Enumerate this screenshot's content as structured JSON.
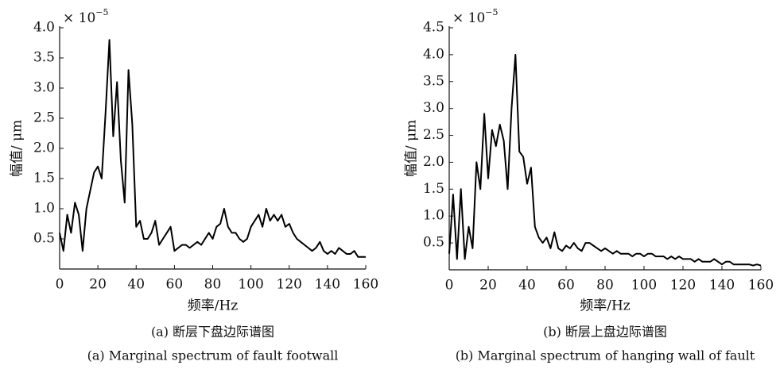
{
  "chart_data": [
    {
      "type": "line",
      "color": "#000000",
      "y_scale_base": "× 10",
      "y_scale_exponent": "−5",
      "y_label": "幅值/ μm",
      "x_label": "频率/Hz",
      "caption": "(a) 断层下盘边际谱图",
      "caption_en": "(a) Marginal spectrum of fault footwall",
      "xlim": [
        0,
        160
      ],
      "xticks": [
        0,
        20,
        40,
        60,
        80,
        100,
        120,
        140,
        160
      ],
      "ylim": [
        0,
        4
      ],
      "yticks": [
        0.5,
        {
          "value": 1,
          "label": "1.0"
        },
        1.5,
        {
          "value": 2,
          "label": "2.0"
        },
        2.5,
        {
          "value": 3,
          "label": "3.0"
        },
        3.5,
        {
          "value": 4,
          "label": "4.0"
        }
      ],
      "x": [
        0,
        2,
        4,
        6,
        8,
        10,
        12,
        14,
        16,
        18,
        20,
        22,
        24,
        26,
        28,
        30,
        32,
        34,
        36,
        38,
        40,
        42,
        44,
        46,
        48,
        50,
        52,
        54,
        56,
        58,
        60,
        62,
        64,
        66,
        68,
        70,
        72,
        74,
        76,
        78,
        80,
        82,
        84,
        86,
        88,
        90,
        92,
        94,
        96,
        98,
        100,
        102,
        104,
        106,
        108,
        110,
        112,
        114,
        116,
        118,
        120,
        122,
        124,
        126,
        128,
        130,
        132,
        134,
        136,
        138,
        140,
        142,
        144,
        146,
        148,
        150,
        152,
        154,
        156,
        158,
        160
      ],
      "values": [
        0.6,
        0.3,
        0.9,
        0.6,
        1.1,
        0.9,
        0.3,
        1.0,
        1.3,
        1.6,
        1.7,
        1.5,
        2.6,
        3.8,
        2.2,
        3.1,
        1.8,
        1.1,
        3.3,
        2.4,
        0.7,
        0.8,
        0.5,
        0.5,
        0.6,
        0.8,
        0.4,
        0.5,
        0.6,
        0.7,
        0.3,
        0.35,
        0.4,
        0.4,
        0.35,
        0.4,
        0.45,
        0.4,
        0.5,
        0.6,
        0.5,
        0.7,
        0.75,
        1.0,
        0.7,
        0.6,
        0.6,
        0.5,
        0.45,
        0.5,
        0.7,
        0.8,
        0.9,
        0.7,
        1.0,
        0.8,
        0.9,
        0.8,
        0.9,
        0.7,
        0.75,
        0.6,
        0.5,
        0.45,
        0.4,
        0.35,
        0.3,
        0.35,
        0.45,
        0.3,
        0.25,
        0.3,
        0.25,
        0.35,
        0.3,
        0.25,
        0.25,
        0.3,
        0.2,
        0.2,
        0.2
      ]
    },
    {
      "type": "line",
      "color": "#000000",
      "y_scale_base": "× 10",
      "y_scale_exponent": "−5",
      "y_label": "幅值/ μm",
      "x_label": "频率/Hz",
      "caption": "(b) 断层上盘边际谱图",
      "caption_en": "(b) Marginal spectrum of hanging wall of fault",
      "xlim": [
        0,
        160
      ],
      "xticks": [
        0,
        20,
        40,
        60,
        80,
        100,
        120,
        140,
        160
      ],
      "ylim": [
        0,
        4.5
      ],
      "yticks": [
        0.5,
        {
          "value": 1,
          "label": "1.0"
        },
        1.5,
        {
          "value": 2,
          "label": "2.0"
        },
        2.5,
        {
          "value": 3,
          "label": "3.0"
        },
        3.5,
        {
          "value": 4,
          "label": "4.0"
        },
        4.5
      ],
      "x": [
        0,
        2,
        4,
        6,
        8,
        10,
        12,
        14,
        16,
        18,
        20,
        22,
        24,
        26,
        28,
        30,
        32,
        34,
        36,
        38,
        40,
        42,
        44,
        46,
        48,
        50,
        52,
        54,
        56,
        58,
        60,
        62,
        64,
        66,
        68,
        70,
        72,
        74,
        76,
        78,
        80,
        82,
        84,
        86,
        88,
        90,
        92,
        94,
        96,
        98,
        100,
        102,
        104,
        106,
        108,
        110,
        112,
        114,
        116,
        118,
        120,
        122,
        124,
        126,
        128,
        130,
        132,
        134,
        136,
        138,
        140,
        142,
        144,
        146,
        148,
        150,
        152,
        154,
        156,
        158,
        160
      ],
      "values": [
        0.3,
        1.4,
        0.2,
        1.5,
        0.2,
        0.8,
        0.4,
        2.0,
        1.5,
        2.9,
        1.7,
        2.6,
        2.3,
        2.7,
        2.4,
        1.5,
        3.0,
        4.0,
        2.2,
        2.1,
        1.6,
        1.9,
        0.8,
        0.6,
        0.5,
        0.6,
        0.4,
        0.7,
        0.4,
        0.35,
        0.45,
        0.4,
        0.5,
        0.4,
        0.35,
        0.5,
        0.5,
        0.45,
        0.4,
        0.35,
        0.4,
        0.35,
        0.3,
        0.35,
        0.3,
        0.3,
        0.3,
        0.25,
        0.3,
        0.3,
        0.25,
        0.3,
        0.3,
        0.25,
        0.25,
        0.25,
        0.2,
        0.25,
        0.2,
        0.25,
        0.2,
        0.2,
        0.2,
        0.15,
        0.2,
        0.15,
        0.15,
        0.15,
        0.2,
        0.15,
        0.1,
        0.15,
        0.15,
        0.1,
        0.1,
        0.1,
        0.1,
        0.1,
        0.08,
        0.1,
        0.08
      ]
    }
  ]
}
